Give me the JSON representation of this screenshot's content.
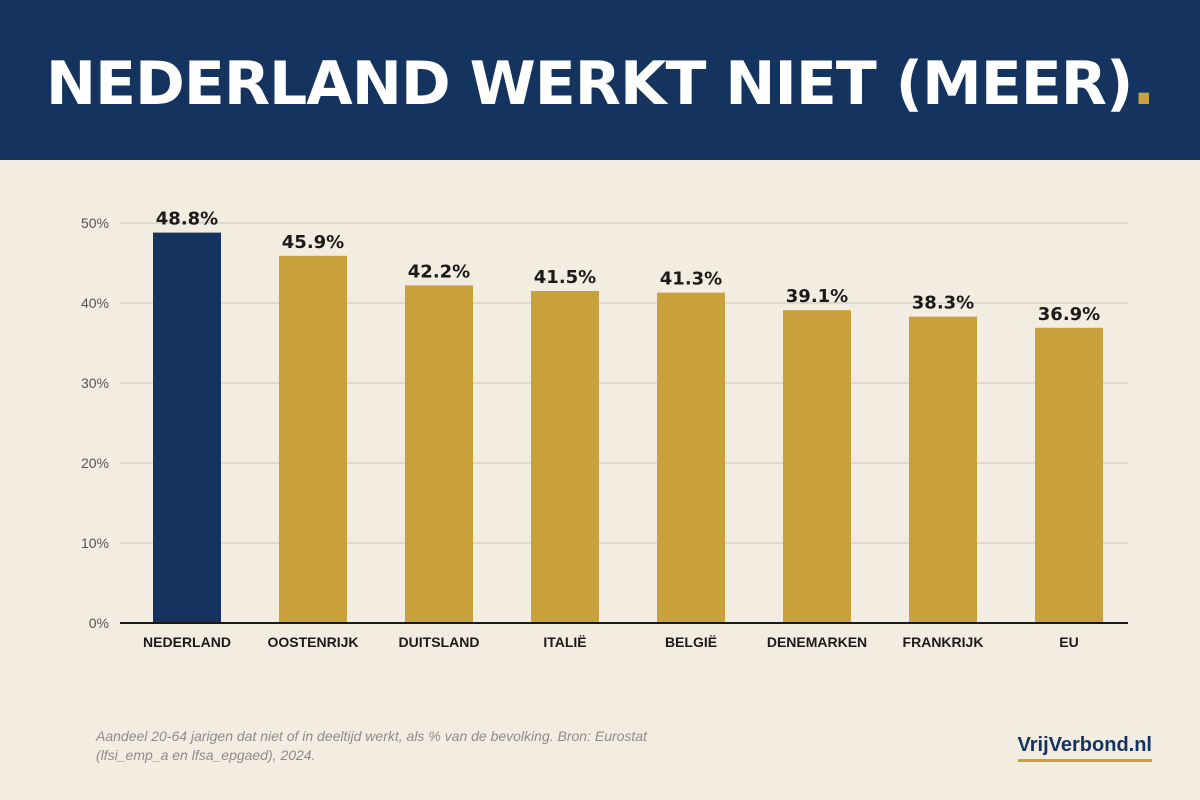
{
  "header": {
    "title": "NEDERLAND WERKT NIET (MEER)",
    "title_dot": ".",
    "background": "#14345f"
  },
  "chart_data": {
    "type": "bar",
    "categories": [
      "NEDERLAND",
      "OOSTENRIJK",
      "DUITSLAND",
      "ITALIË",
      "BELGIË",
      "DENEMARKEN",
      "FRANKRIJK",
      "EU"
    ],
    "values": [
      48.8,
      45.9,
      42.2,
      41.5,
      41.3,
      39.1,
      38.3,
      36.9
    ],
    "value_labels": [
      "48.8%",
      "45.9%",
      "42.2%",
      "41.5%",
      "41.3%",
      "39.1%",
      "38.3%",
      "36.9%"
    ],
    "ylim": [
      0,
      50
    ],
    "yticks": [
      0,
      10,
      20,
      30,
      40,
      50
    ],
    "ytick_labels": [
      "0%",
      "10%",
      "20%",
      "30%",
      "40%",
      "50%"
    ],
    "grid": true,
    "highlight_category": "NEDERLAND",
    "colors": {
      "highlight": "#14345f",
      "bar": "#c9a13c",
      "grid": "#d9d2c6",
      "axis": "#1a1a1a",
      "label": "#1a1a1a",
      "tick_label": "#555555"
    }
  },
  "footer": {
    "source": "Aandeel 20-64 jarigen dat niet of in deeltijd werkt, als % van de bevolking. Bron: Eurostat (lfsi_emp_a en lfsa_epgaed), 2024.",
    "brand": "VrijVerbond.nl"
  }
}
